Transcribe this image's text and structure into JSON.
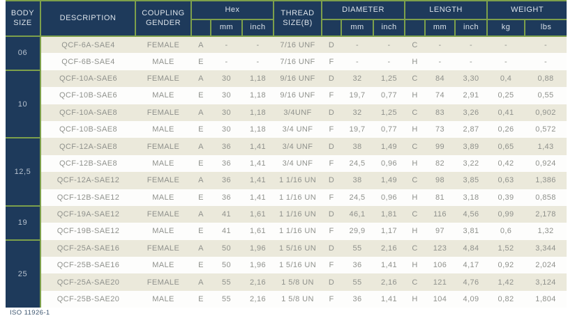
{
  "colors": {
    "navy": "#1e3a5b",
    "green": "#7da04b",
    "beige": "#ebe9db",
    "row_white": "#fdfdfc",
    "data_text": "#8f918c",
    "header_text": "#dce3ea"
  },
  "table": {
    "headers": {
      "body_size": "BODY SIZE",
      "description": "DESCRIPTION",
      "coupling_gender": "COUPLING GENDER",
      "hex": "Hex",
      "thread_size": "THREAD SIZE(B)",
      "diameter": "DIAMETER",
      "length": "LENGTH",
      "weight": "WEIGHT",
      "mm": "mm",
      "inch": "inch",
      "kg": "kg",
      "lbs": "lbs"
    },
    "groups": [
      {
        "body_size": "06",
        "rows": [
          {
            "description": "QCF-6A-SAE4",
            "gender": "FEMALE",
            "hex_letter": "A",
            "hex_mm": "-",
            "hex_inch": "-",
            "thread": "7/16 UNF",
            "dia_letter": "D",
            "dia_mm": "-",
            "dia_inch": "-",
            "len_letter": "C",
            "len_mm": "-",
            "len_inch": "-",
            "kg": "-",
            "lbs": "-"
          },
          {
            "description": "QCF-6B-SAE4",
            "gender": "MALE",
            "hex_letter": "E",
            "hex_mm": "-",
            "hex_inch": "-",
            "thread": "7/16 UNF",
            "dia_letter": "F",
            "dia_mm": "-",
            "dia_inch": "-",
            "len_letter": "H",
            "len_mm": "-",
            "len_inch": "-",
            "kg": "-",
            "lbs": "-"
          }
        ]
      },
      {
        "body_size": "10",
        "rows": [
          {
            "description": "QCF-10A-SAE6",
            "gender": "FEMALE",
            "hex_letter": "A",
            "hex_mm": "30",
            "hex_inch": "1,18",
            "thread": "9/16 UNF",
            "dia_letter": "D",
            "dia_mm": "32",
            "dia_inch": "1,25",
            "len_letter": "C",
            "len_mm": "84",
            "len_inch": "3,30",
            "kg": "0,4",
            "lbs": "0,88"
          },
          {
            "description": "QCF-10B-SAE6",
            "gender": "MALE",
            "hex_letter": "E",
            "hex_mm": "30",
            "hex_inch": "1,18",
            "thread": "9/16 UNF",
            "dia_letter": "F",
            "dia_mm": "19,7",
            "dia_inch": "0,77",
            "len_letter": "H",
            "len_mm": "74",
            "len_inch": "2,91",
            "kg": "0,25",
            "lbs": "0,55"
          },
          {
            "description": "QCF-10A-SAE8",
            "gender": "FEMALE",
            "hex_letter": "A",
            "hex_mm": "30",
            "hex_inch": "1,18",
            "thread": "3/4UNF",
            "dia_letter": "D",
            "dia_mm": "32",
            "dia_inch": "1,25",
            "len_letter": "C",
            "len_mm": "83",
            "len_inch": "3,26",
            "kg": "0,41",
            "lbs": "0,902"
          },
          {
            "description": "QCF-10B-SAE8",
            "gender": "MALE",
            "hex_letter": "E",
            "hex_mm": "30",
            "hex_inch": "1,18",
            "thread": "3/4 UNF",
            "dia_letter": "F",
            "dia_mm": "19,7",
            "dia_inch": "0,77",
            "len_letter": "H",
            "len_mm": "73",
            "len_inch": "2,87",
            "kg": "0,26",
            "lbs": "0,572"
          }
        ]
      },
      {
        "body_size": "12,5",
        "rows": [
          {
            "description": "QCF-12A-SAE8",
            "gender": "FEMALE",
            "hex_letter": "A",
            "hex_mm": "36",
            "hex_inch": "1,41",
            "thread": "3/4 UNF",
            "dia_letter": "D",
            "dia_mm": "38",
            "dia_inch": "1,49",
            "len_letter": "C",
            "len_mm": "99",
            "len_inch": "3,89",
            "kg": "0,65",
            "lbs": "1,43"
          },
          {
            "description": "QCF-12B-SAE8",
            "gender": "MALE",
            "hex_letter": "E",
            "hex_mm": "36",
            "hex_inch": "1,41",
            "thread": "3/4 UNF",
            "dia_letter": "F",
            "dia_mm": "24,5",
            "dia_inch": "0,96",
            "len_letter": "H",
            "len_mm": "82",
            "len_inch": "3,22",
            "kg": "0,42",
            "lbs": "0,924"
          },
          {
            "description": "QCF-12A-SAE12",
            "gender": "FEMALE",
            "hex_letter": "A",
            "hex_mm": "36",
            "hex_inch": "1,41",
            "thread": "1 1/16 UN",
            "dia_letter": "D",
            "dia_mm": "38",
            "dia_inch": "1,49",
            "len_letter": "C",
            "len_mm": "98",
            "len_inch": "3,85",
            "kg": "0,63",
            "lbs": "1,386"
          },
          {
            "description": "QCF-12B-SAE12",
            "gender": "MALE",
            "hex_letter": "E",
            "hex_mm": "36",
            "hex_inch": "1,41",
            "thread": "1 1/16 UN",
            "dia_letter": "F",
            "dia_mm": "24,5",
            "dia_inch": "0,96",
            "len_letter": "H",
            "len_mm": "81",
            "len_inch": "3,18",
            "kg": "0,39",
            "lbs": "0,858"
          }
        ]
      },
      {
        "body_size": "19",
        "rows": [
          {
            "description": "QCF-19A-SAE12",
            "gender": "FEMALE",
            "hex_letter": "A",
            "hex_mm": "41",
            "hex_inch": "1,61",
            "thread": "1 1/16 UN",
            "dia_letter": "D",
            "dia_mm": "46,1",
            "dia_inch": "1,81",
            "len_letter": "C",
            "len_mm": "116",
            "len_inch": "4,56",
            "kg": "0,99",
            "lbs": "2,178"
          },
          {
            "description": "QCF-19B-SAE12",
            "gender": "MALE",
            "hex_letter": "E",
            "hex_mm": "41",
            "hex_inch": "1,61",
            "thread": "1 1/16 UN",
            "dia_letter": "F",
            "dia_mm": "29,9",
            "dia_inch": "1,17",
            "len_letter": "H",
            "len_mm": "97",
            "len_inch": "3,81",
            "kg": "0,6",
            "lbs": "1,32"
          }
        ]
      },
      {
        "body_size": "25",
        "rows": [
          {
            "description": "QCF-25A-SAE16",
            "gender": "FEMALE",
            "hex_letter": "A",
            "hex_mm": "50",
            "hex_inch": "1,96",
            "thread": "1 5/16 UN",
            "dia_letter": "D",
            "dia_mm": "55",
            "dia_inch": "2,16",
            "len_letter": "C",
            "len_mm": "123",
            "len_inch": "4,84",
            "kg": "1,52",
            "lbs": "3,344"
          },
          {
            "description": "QCF-25B-SAE16",
            "gender": "MALE",
            "hex_letter": "E",
            "hex_mm": "50",
            "hex_inch": "1,96",
            "thread": "1 5/16 UN",
            "dia_letter": "F",
            "dia_mm": "36",
            "dia_inch": "1,41",
            "len_letter": "H",
            "len_mm": "106",
            "len_inch": "4,17",
            "kg": "0,92",
            "lbs": "2,024"
          },
          {
            "description": "QCF-25A-SAE20",
            "gender": "FEMALE",
            "hex_letter": "A",
            "hex_mm": "55",
            "hex_inch": "2,16",
            "thread": "1 5/8 UN",
            "dia_letter": "D",
            "dia_mm": "55",
            "dia_inch": "2,16",
            "len_letter": "C",
            "len_mm": "121",
            "len_inch": "4,76",
            "kg": "1,42",
            "lbs": "3,124"
          },
          {
            "description": "QCF-25B-SAE20",
            "gender": "MALE",
            "hex_letter": "E",
            "hex_mm": "55",
            "hex_inch": "2,16",
            "thread": "1 5/8 UN",
            "dia_letter": "F",
            "dia_mm": "36",
            "dia_inch": "1,41",
            "len_letter": "H",
            "len_mm": "104",
            "len_inch": "4,09",
            "kg": "0,82",
            "lbs": "1,804"
          }
        ]
      }
    ],
    "footnote": "ISO 11926-1"
  }
}
